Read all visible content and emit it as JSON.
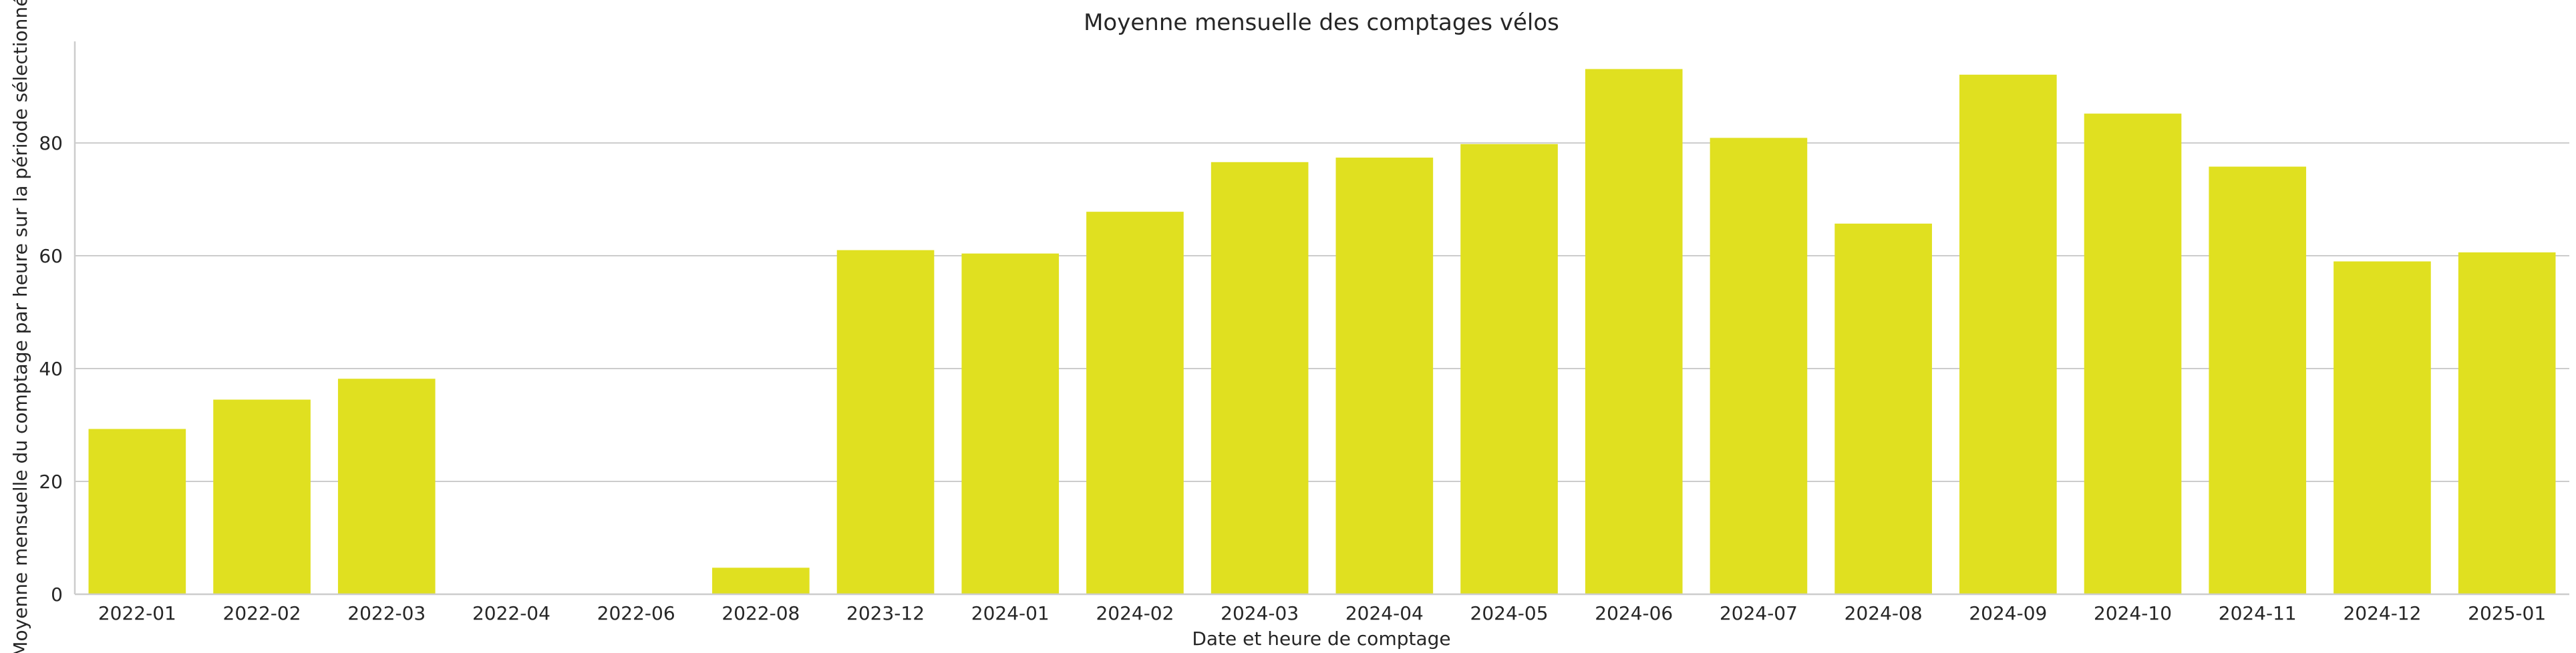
{
  "chart_data": {
    "type": "bar",
    "title": "Moyenne mensuelle des comptages vélos",
    "xlabel": "Date et heure de comptage",
    "ylabel": "Moyenne mensuelle du comptage par heure sur la période sélectionnée",
    "categories": [
      "2022-01",
      "2022-02",
      "2022-03",
      "2022-04",
      "2022-06",
      "2022-08",
      "2023-12",
      "2024-01",
      "2024-02",
      "2024-03",
      "2024-04",
      "2024-05",
      "2024-06",
      "2024-07",
      "2024-08",
      "2024-09",
      "2024-10",
      "2024-11",
      "2024-12",
      "2025-01"
    ],
    "values": [
      29.3,
      34.5,
      38.2,
      0.1,
      0.1,
      4.7,
      61.0,
      60.4,
      67.8,
      76.6,
      77.4,
      79.8,
      93.1,
      80.9,
      65.7,
      92.1,
      85.2,
      75.8,
      59.0,
      60.6
    ],
    "ylim": [
      0,
      98
    ],
    "yticks": [
      0,
      20,
      40,
      60,
      80
    ],
    "grid": true,
    "bar_color": "#e0e020"
  }
}
